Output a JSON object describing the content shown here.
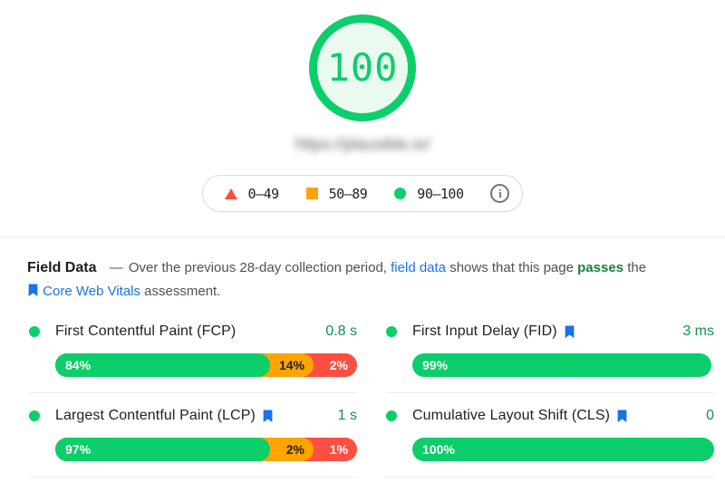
{
  "gauge": {
    "score": "100",
    "url_text": "https://plausible.io/"
  },
  "legend": {
    "ranges": [
      {
        "icon": "triangle",
        "color": "#ff4e42",
        "label": "0–49"
      },
      {
        "icon": "square",
        "color": "#ffa400",
        "label": "50–89"
      },
      {
        "icon": "circle",
        "color": "#0cce6b",
        "label": "90–100"
      }
    ],
    "info_glyph": "i"
  },
  "field_data": {
    "heading": "Field Data",
    "dash": "—",
    "part1": "Over the previous 28-day collection period,",
    "link1": "field data",
    "part2": "shows that this page",
    "passes_word": "passes",
    "part3": "the",
    "link2": "Core Web Vitals",
    "part4": "assessment."
  },
  "colors": {
    "good": "#0cce6b",
    "needs_improvement": "#ffa400",
    "poor": "#ff4e42",
    "link_blue": "#1a73e8",
    "pass_green": "#188038",
    "value_green": "#109150"
  },
  "chart_data": [
    {
      "type": "bar",
      "title": "First Contentful Paint (FCP)",
      "value": "0.8 s",
      "core_web_vital": false,
      "segments": [
        {
          "level": "good",
          "pct": 84,
          "label": "84%"
        },
        {
          "level": "avg",
          "pct": 14,
          "label": "14%"
        },
        {
          "level": "poor",
          "pct": 2,
          "label": "2%"
        }
      ]
    },
    {
      "type": "bar",
      "title": "First Input Delay (FID)",
      "value": "3 ms",
      "core_web_vital": true,
      "segments": [
        {
          "level": "good",
          "pct": 99,
          "label": "99%"
        }
      ]
    },
    {
      "type": "bar",
      "title": "Largest Contentful Paint (LCP)",
      "value": "1 s",
      "core_web_vital": true,
      "segments": [
        {
          "level": "good",
          "pct": 97,
          "label": "97%"
        },
        {
          "level": "avg",
          "pct": 2,
          "label": "2%"
        },
        {
          "level": "poor",
          "pct": 1,
          "label": "1%"
        }
      ]
    },
    {
      "type": "bar",
      "title": "Cumulative Layout Shift (CLS)",
      "value": "0",
      "core_web_vital": true,
      "segments": [
        {
          "level": "good",
          "pct": 100,
          "label": "100%"
        }
      ]
    }
  ]
}
